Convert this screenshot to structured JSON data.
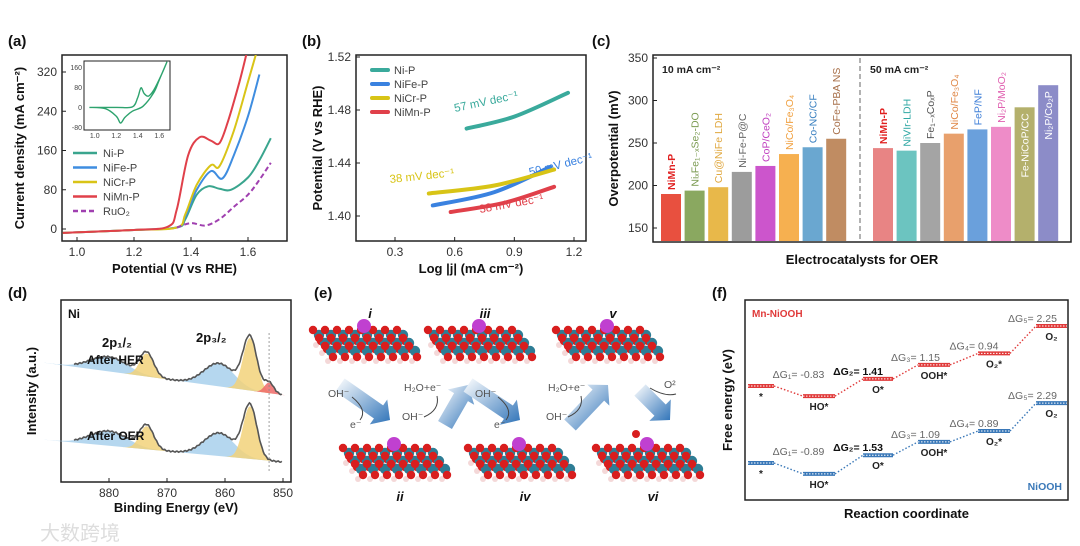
{
  "chart_data": [
    {
      "panel": "(a)",
      "type": "line",
      "xlabel": "Potential (V vs RHE)",
      "ylabel": "Current density (mA cm⁻²)",
      "xlim": [
        0.95,
        1.75
      ],
      "ylim": [
        -15,
        350
      ],
      "xticks": [
        "1.0",
        "1.2",
        "1.4",
        "1.6"
      ],
      "xtick_values": [
        1.0,
        1.2,
        1.4,
        1.6
      ],
      "yticks": [
        "0",
        "80",
        "160",
        "240",
        "320"
      ],
      "ytick_values": [
        0,
        80,
        160,
        240,
        320
      ],
      "legend_position": "center-left",
      "series": [
        {
          "name": "Ni-P",
          "color": "#3aa58e",
          "dashed": false,
          "points": [
            [
              0.95,
              -8
            ],
            [
              1.2,
              -2
            ],
            [
              1.35,
              3
            ],
            [
              1.38,
              20
            ],
            [
              1.42,
              70
            ],
            [
              1.46,
              87
            ],
            [
              1.5,
              82
            ],
            [
              1.54,
              80
            ],
            [
              1.6,
              105
            ],
            [
              1.64,
              140
            ],
            [
              1.68,
              185
            ]
          ]
        },
        {
          "name": "NiFe-P",
          "color": "#3f8de0",
          "dashed": false,
          "points": [
            [
              0.95,
              -8
            ],
            [
              1.2,
              -2
            ],
            [
              1.35,
              3
            ],
            [
              1.38,
              25
            ],
            [
              1.42,
              80
            ],
            [
              1.47,
              118
            ],
            [
              1.51,
              103
            ],
            [
              1.55,
              150
            ],
            [
              1.6,
              230
            ],
            [
              1.64,
              315
            ]
          ]
        },
        {
          "name": "NiCr-P",
          "color": "#d9c417",
          "dashed": false,
          "points": [
            [
              0.95,
              -8
            ],
            [
              1.2,
              -2
            ],
            [
              1.35,
              3
            ],
            [
              1.38,
              30
            ],
            [
              1.42,
              90
            ],
            [
              1.47,
              130
            ],
            [
              1.5,
              128
            ],
            [
              1.55,
              200
            ],
            [
              1.6,
              300
            ],
            [
              1.63,
              360
            ]
          ]
        },
        {
          "name": "NiMn-P",
          "color": "#e0404a",
          "dashed": false,
          "points": [
            [
              0.95,
              -8
            ],
            [
              1.2,
              -2
            ],
            [
              1.32,
              5
            ],
            [
              1.35,
              40
            ],
            [
              1.39,
              150
            ],
            [
              1.43,
              187
            ],
            [
              1.47,
              180
            ],
            [
              1.5,
              175
            ],
            [
              1.53,
              220
            ],
            [
              1.57,
              300
            ],
            [
              1.6,
              370
            ]
          ]
        },
        {
          "name": "RuO₂",
          "color": "#a040b0",
          "dashed": true,
          "points": [
            [
              1.35,
              3
            ],
            [
              1.4,
              12
            ],
            [
              1.45,
              7
            ],
            [
              1.5,
              20
            ],
            [
              1.55,
              45
            ],
            [
              1.6,
              70
            ],
            [
              1.64,
              100
            ],
            [
              1.68,
              135
            ]
          ]
        }
      ],
      "inset": {
        "type": "line",
        "xlim": [
          0.9,
          1.7
        ],
        "ylim": [
          -90,
          185
        ],
        "xticks": [
          "1.0",
          "1.2",
          "1.4",
          "1.6"
        ],
        "xtick_values": [
          1.0,
          1.2,
          1.4,
          1.6
        ],
        "yticks": [
          "160",
          "80",
          "0",
          "-80"
        ],
        "ytick_values": [
          160,
          80,
          0,
          -80
        ],
        "color": "#2ea36e",
        "points": [
          [
            0.95,
            0
          ],
          [
            1.2,
            0
          ],
          [
            1.35,
            2
          ],
          [
            1.4,
            40
          ],
          [
            1.43,
            78
          ],
          [
            1.46,
            55
          ],
          [
            1.5,
            45
          ],
          [
            1.55,
            70
          ],
          [
            1.62,
            130
          ],
          [
            1.67,
            180
          ],
          [
            1.6,
            110
          ],
          [
            1.55,
            60
          ],
          [
            1.45,
            5
          ],
          [
            1.35,
            -15
          ],
          [
            1.28,
            -40
          ],
          [
            1.24,
            -62
          ],
          [
            1.2,
            -35
          ],
          [
            1.1,
            -5
          ],
          [
            0.95,
            0
          ]
        ]
      }
    },
    {
      "panel": "(b)",
      "type": "line",
      "xlabel": "Log |j| (mA cm⁻²)",
      "ylabel": "Potential (V vs RHE)",
      "xlim": [
        0.15,
        1.25
      ],
      "ylim": [
        1.38,
        1.52
      ],
      "xticks": [
        "0.3",
        "0.6",
        "0.9",
        "1.2"
      ],
      "xtick_values": [
        0.3,
        0.6,
        0.9,
        1.2
      ],
      "yticks": [
        "1.40",
        "1.44",
        "1.48",
        "1.52"
      ],
      "ytick_values": [
        1.4,
        1.44,
        1.48,
        1.52
      ],
      "legend_position": "top-left",
      "series": [
        {
          "name": "Ni-P",
          "color": "#3aaa9c",
          "points": [
            [
              0.66,
              1.466
            ],
            [
              0.9,
              1.475
            ],
            [
              1.17,
              1.493
            ]
          ],
          "annotation": "57 mV dec⁻¹"
        },
        {
          "name": "NiFe-P",
          "color": "#3a82e0",
          "points": [
            [
              0.49,
              1.408
            ],
            [
              0.8,
              1.418
            ],
            [
              1.08,
              1.437
            ]
          ],
          "annotation": "50 mV dec⁻¹"
        },
        {
          "name": "NiCr-P",
          "color": "#d8c416",
          "points": [
            [
              0.47,
              1.417
            ],
            [
              0.8,
              1.423
            ],
            [
              1.1,
              1.435
            ]
          ],
          "annotation": "38 mV dec⁻¹"
        },
        {
          "name": "NiMn-P",
          "color": "#e0404a",
          "points": [
            [
              0.58,
              1.403
            ],
            [
              0.85,
              1.41
            ],
            [
              1.1,
              1.422
            ]
          ],
          "annotation": "38 mV dec⁻¹"
        }
      ]
    },
    {
      "panel": "(c)",
      "type": "bar",
      "xlabel": "Electrocatalysts for OER",
      "ylabel": "Overpotential (mV)",
      "ylim": [
        135,
        352
      ],
      "yticks": [
        "150",
        "200",
        "250",
        "300",
        "350"
      ],
      "ytick_values": [
        150,
        200,
        250,
        300,
        350
      ],
      "groups": [
        {
          "title": "10 mA cm⁻²",
          "bars": [
            {
              "label": "NiMn-P",
              "value": 190,
              "color": "#e8503f",
              "text_color": "#e02020",
              "bold": true
            },
            {
              "label": "NiₓFe₁₋ₓSe₂-DO",
              "value": 194,
              "color": "#8aa860",
              "text_color": "#7a9a50"
            },
            {
              "label": "Cu@NiFe LDH",
              "value": 198,
              "color": "#e8b84a",
              "text_color": "#e0a840"
            },
            {
              "label": "Ni-Fe-P@C",
              "value": 216,
              "color": "#9c9c9c",
              "text_color": "#666666"
            },
            {
              "label": "CoP/CeO₂",
              "value": 223,
              "color": "#cc55cc",
              "text_color": "#c040c0"
            },
            {
              "label": "NiCo/Fe₃O₄",
              "value": 237,
              "color": "#f6b050",
              "text_color": "#f0a040"
            },
            {
              "label": "Co-NC/CF",
              "value": 245,
              "color": "#6aa7d0",
              "text_color": "#3a80c0"
            },
            {
              "label": "CoFe-PBA NS",
              "value": 255,
              "color": "#c08c62",
              "text_color": "#a8704a"
            }
          ]
        },
        {
          "title": "50 mA cm⁻²",
          "bars": [
            {
              "label": "NiMn-P",
              "value": 244,
              "color": "#e88484",
              "text_color": "#e02020",
              "bold": true
            },
            {
              "label": "NiVIr-LDH",
              "value": 241,
              "color": "#6cc4c0",
              "text_color": "#30a8a4"
            },
            {
              "label": "Fe₁₋ₓCoₓP",
              "value": 250,
              "color": "#a4a4a4",
              "text_color": "#555555"
            },
            {
              "label": "NiCo/Fe₃O₄",
              "value": 261,
              "color": "#e8a06c",
              "text_color": "#e08848"
            },
            {
              "label": "FeP/NF",
              "value": 266,
              "color": "#6aa0dc",
              "text_color": "#4080d8"
            },
            {
              "label": "Ni₂P/MoO₂",
              "value": 269,
              "color": "#ee8cc8",
              "text_color": "#e060b0"
            },
            {
              "label": "Fe-NiCoP/CC",
              "value": 292,
              "color": "#b4b06c",
              "text_color": "#ffffff",
              "inside": true
            },
            {
              "label": "Ni₂P/Co₂P",
              "value": 318,
              "color": "#8c8cc8",
              "text_color": "#ffffff",
              "inside": true
            }
          ]
        }
      ]
    },
    {
      "panel": "(d)",
      "type": "line",
      "xlabel": "Binding Energy (eV)",
      "ylabel": "Intensity (a.u.)",
      "xlim": [
        887,
        849
      ],
      "reversed_x": true,
      "xticks": [
        "880",
        "870",
        "860",
        "850"
      ],
      "xtick_values": [
        880,
        870,
        860,
        850
      ],
      "element": "Ni",
      "peak_labels": [
        "2p₁/₂",
        "2p₃/₂"
      ],
      "spectra": [
        {
          "name": "After HER",
          "baseline": [
            0.0,
            -0.25
          ],
          "components": [
            {
              "center": 880,
              "height": 0.35,
              "width": 3.2,
              "color": "#a8d0ec"
            },
            {
              "center": 873.5,
              "height": 0.55,
              "width": 1.2,
              "color": "#f2d27a"
            },
            {
              "center": 861,
              "height": 0.55,
              "width": 2.6,
              "color": "#a8d0ec"
            },
            {
              "center": 855.7,
              "height": 1.25,
              "width": 1.2,
              "color": "#f2d27a"
            },
            {
              "center": 852.4,
              "height": 0.25,
              "width": 0.8,
              "color": "#ee6a6a"
            }
          ]
        },
        {
          "name": "After OER",
          "baseline": [
            0.0,
            -0.18
          ],
          "components": [
            {
              "center": 880,
              "height": 0.35,
              "width": 3.2,
              "color": "#a8d0ec"
            },
            {
              "center": 873.5,
              "height": 0.55,
              "width": 1.2,
              "color": "#f2d27a"
            },
            {
              "center": 861,
              "height": 0.55,
              "width": 2.6,
              "color": "#a8d0ec"
            },
            {
              "center": 855.7,
              "height": 1.25,
              "width": 1.2,
              "color": "#f2d27a"
            }
          ]
        }
      ],
      "reference_line": 852.4
    },
    {
      "panel": "(f)",
      "type": "line",
      "xlabel": "Reaction coordinate",
      "ylabel": "Free energy (eV)",
      "series": [
        {
          "name": "Mn-NiOOH",
          "color": "#e03a3a",
          "states": [
            "*",
            "HO*",
            "O*",
            "OOH*",
            "O₂*",
            "O₂"
          ],
          "relative_levels": [
            0,
            -0.83,
            0.58,
            1.73,
            2.67,
            4.92
          ],
          "steps": [
            "ΔG₁= -0.83",
            "ΔG₂= 1.41",
            "ΔG₃= 1.15",
            "ΔG₄= 0.94",
            "ΔG₅= 2.25"
          ]
        },
        {
          "name": "NiOOH",
          "color": "#3a78b8",
          "states": [
            "*",
            "HO*",
            "O*",
            "OOH*",
            "O₂*",
            "O₂"
          ],
          "relative_levels": [
            0,
            -0.89,
            0.64,
            1.73,
            2.62,
            4.91
          ],
          "steps": [
            "ΔG₁= -0.89",
            "ΔG₂= 1.53",
            "ΔG₃= 1.09",
            "ΔG₄= 0.89",
            "ΔG₅= 2.29"
          ]
        }
      ]
    }
  ],
  "panels": {
    "a": "(a)",
    "b": "(b)",
    "c": "(c)",
    "d": "(d)",
    "e": "(e)",
    "f": "(f)"
  },
  "scheme_e": {
    "states_top": [
      "i",
      "iii",
      "v"
    ],
    "states_bottom": [
      "ii",
      "iv",
      "vi"
    ],
    "steps": [
      {
        "in": "OH⁻",
        "out": "e⁻"
      },
      {
        "in": "OH⁻",
        "out": "H₂O+e⁻"
      },
      {
        "in": "OH⁻",
        "out": "e⁻"
      },
      {
        "in": "OH⁻",
        "out": "H₂O+e⁻"
      },
      {
        "out": "O²"
      }
    ],
    "colors": {
      "oxygen": "#d81e1e",
      "nickel": "#2e7d95",
      "manganese": "#c040d0",
      "hydrogen": "#f4d8d8"
    }
  },
  "watermark": "大数跨境"
}
